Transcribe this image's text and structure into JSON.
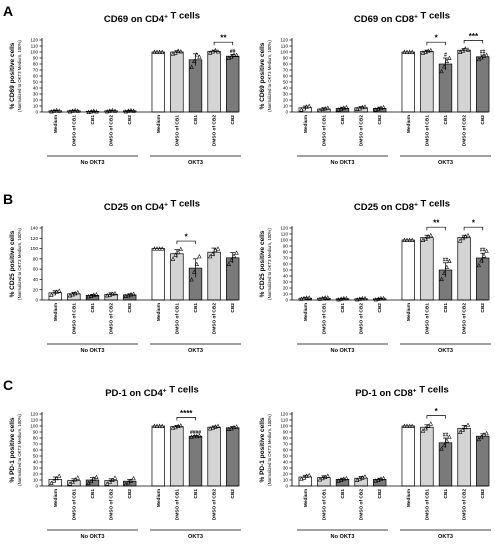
{
  "panel_letters": [
    "A",
    "B",
    "C"
  ],
  "chart_data": [
    {
      "type": "bar",
      "panel": "A",
      "title": "CD69 on CD4⁺ T cells",
      "ylabel": "% CD69 positive cells",
      "ylabel_sub": "(Normalized to OKT3 Medium, 100%)",
      "categories": [
        "Medium",
        "DMSO of CB1",
        "CB1",
        "DMSO of CB2",
        "CB2",
        "Medium",
        "DMSO of CB1",
        "CB1",
        "DMSO of CB2",
        "CB2"
      ],
      "groups": [
        {
          "label": "No OKT3",
          "from": 0,
          "to": 4
        },
        {
          "label": "OKT3",
          "from": 5,
          "to": 9
        }
      ],
      "values": [
        2,
        2,
        1,
        2,
        2,
        100,
        100,
        87,
        101,
        93
      ],
      "errors": [
        1,
        1,
        1,
        1,
        1,
        0,
        2,
        10,
        2,
        3
      ],
      "points": [
        [
          1,
          2,
          3,
          2
        ],
        [
          1,
          2,
          3,
          2
        ],
        [
          0,
          1,
          2,
          1
        ],
        [
          1,
          2,
          3,
          2
        ],
        [
          1,
          2,
          3,
          2
        ],
        [
          100,
          100,
          100,
          100
        ],
        [
          97,
          99,
          102,
          101
        ],
        [
          75,
          85,
          96,
          92
        ],
        [
          99,
          101,
          103,
          101
        ],
        [
          90,
          92,
          95,
          95
        ]
      ],
      "ylim": [
        0,
        120
      ],
      "yticks": [
        0,
        10,
        20,
        30,
        40,
        50,
        60,
        70,
        80,
        90,
        100,
        110,
        120
      ],
      "significance": [
        {
          "from": 8,
          "to": 9,
          "label": "**"
        }
      ],
      "annotations": [
        {
          "bar": 9,
          "label": "##"
        }
      ]
    },
    {
      "type": "bar",
      "panel": "A",
      "title": "CD69 on CD8⁺ T cells",
      "ylabel": "% CD69 positive cells",
      "ylabel_sub": "(Normalized to OKT3 Medium, 100%)",
      "categories": [
        "Medium",
        "DMSO of CB1",
        "CB1",
        "DMSO of CB2",
        "CB2",
        "Medium",
        "DMSO of CB1",
        "CB1",
        "DMSO of CB2",
        "CB2"
      ],
      "groups": [
        {
          "label": "No OKT3",
          "from": 0,
          "to": 4
        },
        {
          "label": "OKT3",
          "from": 5,
          "to": 9
        }
      ],
      "values": [
        7,
        5,
        6,
        7,
        6,
        100,
        101,
        80,
        103,
        92
      ],
      "errors": [
        3,
        2,
        2,
        2,
        2,
        0,
        2,
        10,
        3,
        3
      ],
      "points": [
        [
          4,
          6,
          9,
          10
        ],
        [
          3,
          5,
          6,
          7
        ],
        [
          4,
          5,
          7,
          8
        ],
        [
          5,
          6,
          8,
          9
        ],
        [
          4,
          5,
          7,
          8
        ],
        [
          100,
          100,
          100,
          100
        ],
        [
          99,
          100,
          102,
          103
        ],
        [
          68,
          76,
          85,
          90
        ],
        [
          100,
          102,
          106,
          104
        ],
        [
          88,
          91,
          94,
          95
        ]
      ],
      "ylim": [
        0,
        120
      ],
      "yticks": [
        0,
        10,
        20,
        30,
        40,
        50,
        60,
        70,
        80,
        90,
        100,
        110,
        120
      ],
      "significance": [
        {
          "from": 6,
          "to": 7,
          "label": "*"
        },
        {
          "from": 8,
          "to": 9,
          "label": "***"
        }
      ],
      "annotations": [
        {
          "bar": 7,
          "label": "#"
        },
        {
          "bar": 9,
          "label": "##"
        }
      ]
    },
    {
      "type": "bar",
      "panel": "B",
      "title": "CD25 on CD4⁺ T cells",
      "ylabel": "% CD25 positive cells",
      "ylabel_sub": "(Normalized to OKT3 Medium, 100%)",
      "categories": [
        "Medium",
        "DMSO of CB1",
        "CB1",
        "DMSO of CB2",
        "CB2",
        "Medium",
        "DMSO of CB1",
        "CB1",
        "DMSO of CB2",
        "CB2"
      ],
      "groups": [
        {
          "label": "No OKT3",
          "from": 0,
          "to": 4
        },
        {
          "label": "OKT3",
          "from": 5,
          "to": 9
        }
      ],
      "values": [
        14,
        12,
        9,
        11,
        10,
        100,
        90,
        62,
        93,
        82
      ],
      "errors": [
        4,
        3,
        2,
        3,
        2,
        0,
        8,
        18,
        8,
        10
      ],
      "points": [
        [
          10,
          13,
          16,
          18
        ],
        [
          9,
          11,
          13,
          15
        ],
        [
          7,
          8,
          10,
          11
        ],
        [
          9,
          10,
          12,
          13
        ],
        [
          8,
          9,
          11,
          12
        ],
        [
          100,
          100,
          100,
          100
        ],
        [
          80,
          88,
          93,
          99
        ],
        [
          40,
          55,
          70,
          85
        ],
        [
          85,
          90,
          97,
          100
        ],
        [
          70,
          78,
          86,
          92
        ]
      ],
      "ylim": [
        0,
        140
      ],
      "yticks": [
        0,
        20,
        40,
        60,
        80,
        100,
        120,
        140
      ],
      "significance": [
        {
          "from": 6,
          "to": 7,
          "label": "*"
        }
      ],
      "annotations": []
    },
    {
      "type": "bar",
      "panel": "B",
      "title": "CD25 on CD8⁺ T cells",
      "ylabel": "% CD25 positive cells",
      "ylabel_sub": "(Normalized to OKT3 Medium, 100%)",
      "categories": [
        "Medium",
        "DMSO of CB1",
        "CB1",
        "DMSO of CB2",
        "CB2",
        "Medium",
        "DMSO of CB1",
        "CB1",
        "DMSO of CB2",
        "CB2"
      ],
      "groups": [
        {
          "label": "No OKT3",
          "from": 0,
          "to": 4
        },
        {
          "label": "OKT3",
          "from": 5,
          "to": 9
        }
      ],
      "values": [
        3,
        3,
        2,
        2,
        2,
        100,
        104,
        50,
        104,
        70
      ],
      "errors": [
        1,
        1,
        1,
        1,
        1,
        0,
        4,
        12,
        4,
        8
      ],
      "points": [
        [
          2,
          3,
          4,
          4
        ],
        [
          2,
          3,
          4,
          4
        ],
        [
          1,
          2,
          3,
          3
        ],
        [
          1,
          2,
          3,
          3
        ],
        [
          1,
          2,
          3,
          3
        ],
        [
          100,
          100,
          100,
          100
        ],
        [
          100,
          102,
          106,
          108
        ],
        [
          35,
          45,
          55,
          65
        ],
        [
          99,
          103,
          106,
          108
        ],
        [
          58,
          66,
          74,
          82
        ]
      ],
      "ylim": [
        0,
        120
      ],
      "yticks": [
        0,
        10,
        20,
        30,
        40,
        50,
        60,
        70,
        80,
        90,
        100,
        110,
        120
      ],
      "significance": [
        {
          "from": 6,
          "to": 7,
          "label": "**"
        },
        {
          "from": 8,
          "to": 9,
          "label": "*"
        }
      ],
      "annotations": [
        {
          "bar": 7,
          "label": "##"
        },
        {
          "bar": 9,
          "label": "##"
        }
      ]
    },
    {
      "type": "bar",
      "panel": "C",
      "title": "PD-1 on CD4⁺ T cells",
      "ylabel": "% PD-1 positive cells",
      "ylabel_sub": "(Normalized to OKT3 Medium, 100%)",
      "categories": [
        "Medium",
        "DMSO of CB1",
        "CB1",
        "DMSO of CB2",
        "CB2",
        "Medium",
        "DMSO of CB1",
        "CB1",
        "DMSO of CB2",
        "CB2"
      ],
      "groups": [
        {
          "label": "No OKT3",
          "from": 0,
          "to": 4
        },
        {
          "label": "OKT3",
          "from": 5,
          "to": 9
        }
      ],
      "values": [
        11,
        9,
        10,
        9,
        8,
        100,
        99,
        83,
        98,
        97
      ],
      "errors": [
        4,
        3,
        4,
        3,
        3,
        0,
        2,
        1,
        2,
        2
      ],
      "points": [
        [
          5,
          9,
          13,
          17
        ],
        [
          4,
          7,
          11,
          14
        ],
        [
          5,
          8,
          12,
          15
        ],
        [
          4,
          7,
          10,
          14
        ],
        [
          3,
          6,
          9,
          13
        ],
        [
          100,
          100,
          100,
          100
        ],
        [
          97,
          98,
          100,
          101
        ],
        [
          82,
          83,
          83,
          84
        ],
        [
          96,
          97,
          99,
          100
        ],
        [
          95,
          96,
          98,
          99
        ]
      ],
      "ylim": [
        0,
        120
      ],
      "yticks": [
        0,
        10,
        20,
        30,
        40,
        50,
        60,
        70,
        80,
        90,
        100,
        110,
        120
      ],
      "significance": [
        {
          "from": 6,
          "to": 7,
          "label": "****"
        }
      ],
      "annotations": [
        {
          "bar": 7,
          "label": "####"
        }
      ]
    },
    {
      "type": "bar",
      "panel": "C",
      "title": "PD-1 on CD8⁺ T cells",
      "ylabel": "% PD-1 positive cells",
      "ylabel_sub": "(Normalized to OKT3 Medium, 100%)",
      "categories": [
        "Medium",
        "DMSO of CB1",
        "CB1",
        "DMSO of CB2",
        "CB2",
        "Medium",
        "DMSO of CB1",
        "CB1",
        "DMSO of CB2",
        "CB2"
      ],
      "groups": [
        {
          "label": "No OKT3",
          "from": 0,
          "to": 4
        },
        {
          "label": "OKT3",
          "from": 5,
          "to": 9
        }
      ],
      "values": [
        15,
        14,
        11,
        13,
        11,
        100,
        98,
        72,
        96,
        83
      ],
      "errors": [
        3,
        3,
        2,
        3,
        2,
        0,
        4,
        8,
        5,
        4
      ],
      "points": [
        [
          12,
          14,
          17,
          18
        ],
        [
          11,
          13,
          15,
          17
        ],
        [
          9,
          10,
          12,
          13
        ],
        [
          10,
          12,
          14,
          16
        ],
        [
          9,
          10,
          12,
          13
        ],
        [
          100,
          100,
          100,
          100
        ],
        [
          92,
          96,
          100,
          104
        ],
        [
          62,
          68,
          76,
          82
        ],
        [
          90,
          94,
          98,
          102
        ],
        [
          78,
          82,
          86,
          88
        ]
      ],
      "ylim": [
        0,
        120
      ],
      "yticks": [
        0,
        10,
        20,
        30,
        40,
        50,
        60,
        70,
        80,
        90,
        100,
        110,
        120
      ],
      "significance": [
        {
          "from": 6,
          "to": 7,
          "label": "*"
        }
      ],
      "annotations": [
        {
          "bar": 7,
          "label": "##"
        }
      ]
    }
  ],
  "colors": {
    "bar_fills": [
      "#ffffff",
      "#d4d4d4",
      "#7a7a7a",
      "#d4d4d4",
      "#7a7a7a"
    ],
    "axis": "#000000"
  }
}
